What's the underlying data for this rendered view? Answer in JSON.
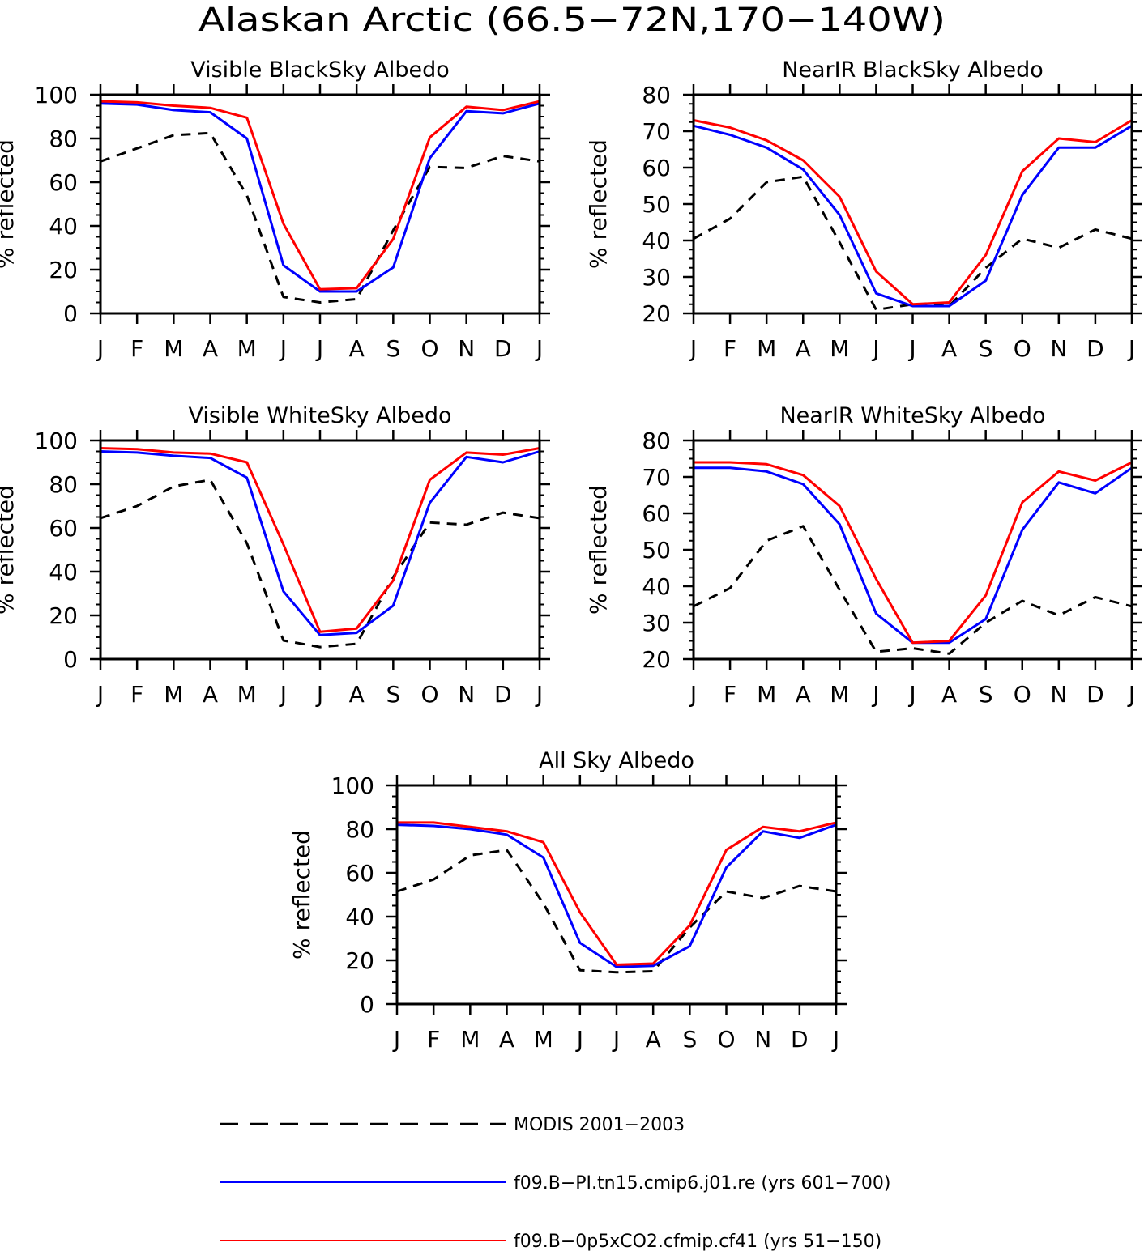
{
  "title": "Alaskan Arctic (66.5−72N,170−140W)",
  "months": [
    "J",
    "F",
    "M",
    "A",
    "M",
    "J",
    "J",
    "A",
    "S",
    "O",
    "N",
    "D",
    "J"
  ],
  "ylabel": "% reflected",
  "colors": {
    "modis": "#000000",
    "pi": "#0000ff",
    "co2": "#ff0000"
  },
  "legend": [
    {
      "label": "MODIS 2001−2003",
      "color": "#000000",
      "dash": true
    },
    {
      "label": "f09.B−PI.tn15.cmip6.j01.re (yrs 601−700)",
      "color": "#0000ff",
      "dash": false
    },
    {
      "label": "f09.B−0p5xCO2.cfmip.cf41 (yrs 51−150)",
      "color": "#ff0000",
      "dash": false
    }
  ],
  "chart_data": [
    {
      "type": "line",
      "title": "Visible BlackSky Albedo",
      "xlabel": "",
      "ylabel": "% reflected",
      "ylim": [
        0,
        100
      ],
      "yticks": [
        0,
        20,
        40,
        60,
        80,
        100
      ],
      "categories": [
        "J",
        "F",
        "M",
        "A",
        "M",
        "J",
        "J",
        "A",
        "S",
        "O",
        "N",
        "D",
        "J"
      ],
      "series": [
        {
          "name": "MODIS 2001−2003",
          "values": [
            69.5,
            75.5,
            81.5,
            82.5,
            54,
            7.5,
            5,
            6.5,
            38,
            67,
            66.5,
            72,
            69.5
          ]
        },
        {
          "name": "f09.B−PI.tn15.cmip6.j01.re (yrs 601−700)",
          "values": [
            96,
            95.5,
            93,
            92,
            80,
            22,
            10,
            10,
            21,
            71,
            92.5,
            91.5,
            96
          ]
        },
        {
          "name": "f09.B−0p5xCO2.cfmip.cf41 (yrs 51−150)",
          "values": [
            97,
            96.5,
            95,
            94,
            89.5,
            41,
            11,
            11.5,
            34,
            80.5,
            94.5,
            93,
            97
          ]
        }
      ]
    },
    {
      "type": "line",
      "title": "NearIR BlackSky Albedo",
      "xlabel": "",
      "ylabel": "% reflected",
      "ylim": [
        20,
        80
      ],
      "yticks": [
        20,
        30,
        40,
        50,
        60,
        70,
        80
      ],
      "categories": [
        "J",
        "F",
        "M",
        "A",
        "M",
        "J",
        "J",
        "A",
        "S",
        "O",
        "N",
        "D",
        "J"
      ],
      "series": [
        {
          "name": "MODIS 2001−2003",
          "values": [
            40.5,
            46,
            56,
            57.5,
            39.5,
            21,
            22.5,
            22,
            32.5,
            40.5,
            38,
            43,
            40.5
          ]
        },
        {
          "name": "f09.B−PI.tn15.cmip6.j01.re (yrs 601−700)",
          "values": [
            71.5,
            69,
            65.5,
            59.5,
            47,
            25.5,
            22,
            22,
            29,
            52.5,
            65.5,
            65.5,
            71.5
          ]
        },
        {
          "name": "f09.B−0p5xCO2.cfmip.cf41 (yrs 51−150)",
          "values": [
            73,
            71,
            67.5,
            62,
            52,
            31.5,
            22.5,
            23,
            36,
            59,
            68,
            67,
            73
          ]
        }
      ]
    },
    {
      "type": "line",
      "title": "Visible WhiteSky Albedo",
      "xlabel": "",
      "ylabel": "% reflected",
      "ylim": [
        0,
        100
      ],
      "yticks": [
        0,
        20,
        40,
        60,
        80,
        100
      ],
      "categories": [
        "J",
        "F",
        "M",
        "A",
        "M",
        "J",
        "J",
        "A",
        "S",
        "O",
        "N",
        "D",
        "J"
      ],
      "series": [
        {
          "name": "MODIS 2001−2003",
          "values": [
            64.5,
            70,
            79,
            82,
            53,
            8.5,
            5.5,
            7,
            37.5,
            62.5,
            61.5,
            67,
            64.5
          ]
        },
        {
          "name": "f09.B−PI.tn15.cmip6.j01.re (yrs 601−700)",
          "values": [
            95,
            94.5,
            93,
            92,
            83,
            31,
            11,
            12,
            24.5,
            71.5,
            92.5,
            90,
            95
          ]
        },
        {
          "name": "f09.B−0p5xCO2.cfmip.cf41 (yrs 51−150)",
          "values": [
            96.5,
            96,
            94.5,
            94,
            90,
            52.5,
            12.5,
            14,
            36,
            82,
            94.5,
            93.5,
            96.5
          ]
        }
      ]
    },
    {
      "type": "line",
      "title": "NearIR WhiteSky Albedo",
      "xlabel": "",
      "ylabel": "% reflected",
      "ylim": [
        20,
        80
      ],
      "yticks": [
        20,
        30,
        40,
        50,
        60,
        70,
        80
      ],
      "categories": [
        "J",
        "F",
        "M",
        "A",
        "M",
        "J",
        "J",
        "A",
        "S",
        "O",
        "N",
        "D",
        "J"
      ],
      "series": [
        {
          "name": "MODIS 2001−2003",
          "values": [
            34.5,
            39.5,
            52.5,
            56.5,
            39,
            22,
            23,
            21.5,
            30,
            36,
            32,
            37,
            34.5
          ]
        },
        {
          "name": "f09.B−PI.tn15.cmip6.j01.re (yrs 601−700)",
          "values": [
            72.5,
            72.5,
            71.5,
            68,
            57,
            32.5,
            24.5,
            24.5,
            31,
            55.5,
            68.5,
            65.5,
            72.5
          ]
        },
        {
          "name": "f09.B−0p5xCO2.cfmip.cf41 (yrs 51−150)",
          "values": [
            74,
            74,
            73.5,
            70.5,
            62,
            42,
            24.5,
            25,
            37.5,
            63,
            71.5,
            69,
            74
          ]
        }
      ]
    },
    {
      "type": "line",
      "title": "All Sky Albedo",
      "xlabel": "",
      "ylabel": "% reflected",
      "ylim": [
        0,
        100
      ],
      "yticks": [
        0,
        20,
        40,
        60,
        80,
        100
      ],
      "categories": [
        "J",
        "F",
        "M",
        "A",
        "M",
        "J",
        "J",
        "A",
        "S",
        "O",
        "N",
        "D",
        "J"
      ],
      "series": [
        {
          "name": "MODIS 2001−2003",
          "values": [
            51.5,
            57,
            68,
            70.5,
            46,
            15.5,
            14.5,
            15,
            35,
            51.5,
            48.5,
            54,
            51.5
          ]
        },
        {
          "name": "f09.B−PI.tn15.cmip6.j01.re (yrs 601−700)",
          "values": [
            82,
            81.5,
            80,
            77.5,
            67,
            28,
            17,
            17.5,
            26.5,
            62.5,
            79,
            76,
            82
          ]
        },
        {
          "name": "f09.B−0p5xCO2.cfmip.cf41 (yrs 51−150)",
          "values": [
            83,
            83,
            81,
            79,
            74,
            42,
            18,
            18.5,
            36,
            70.5,
            81,
            79,
            83
          ]
        }
      ]
    }
  ]
}
